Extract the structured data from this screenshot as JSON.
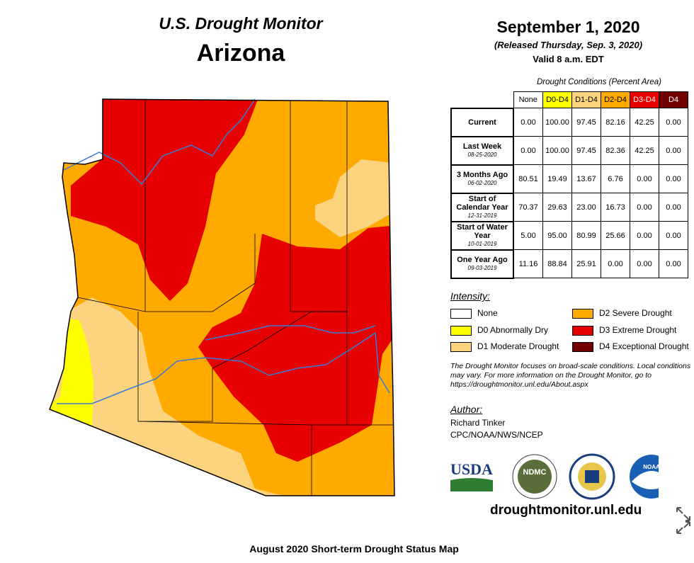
{
  "header": {
    "title": "U.S. Drought Monitor",
    "state": "Arizona",
    "date": "September 1, 2020",
    "released": "(Released Thursday, Sep. 3, 2020)",
    "valid": "Valid 8 a.m. EDT"
  },
  "table": {
    "caption": "Drought Conditions (Percent Area)",
    "columns": [
      "None",
      "D0-D4",
      "D1-D4",
      "D2-D4",
      "D3-D4",
      "D4"
    ],
    "rows": [
      {
        "label": "Current",
        "values": [
          "0.00",
          "100.00",
          "97.45",
          "82.16",
          "42.25",
          "0.00"
        ]
      },
      {
        "label": "Last Week",
        "date": "08-25-2020",
        "values": [
          "0.00",
          "100.00",
          "97.45",
          "82.36",
          "42.25",
          "0.00"
        ]
      },
      {
        "label": "3 Months Ago",
        "date": "06-02-2020",
        "values": [
          "80.51",
          "19.49",
          "13.67",
          "6.76",
          "0.00",
          "0.00"
        ]
      },
      {
        "label": "Start of Calendar Year",
        "date": "12-31-2019",
        "values": [
          "70.37",
          "29.63",
          "23.00",
          "16.73",
          "0.00",
          "0.00"
        ]
      },
      {
        "label": "Start of Water Year",
        "date": "10-01-2019",
        "values": [
          "5.00",
          "95.00",
          "80.99",
          "25.66",
          "0.00",
          "0.00"
        ]
      },
      {
        "label": "One Year Ago",
        "date": "09-03-2019",
        "values": [
          "11.16",
          "88.84",
          "25.91",
          "0.00",
          "0.00",
          "0.00"
        ]
      }
    ]
  },
  "legend": {
    "title": "Intensity:",
    "items": [
      {
        "label": "None",
        "color": "#ffffff"
      },
      {
        "label": "D0 Abnormally Dry",
        "color": "#ffff00"
      },
      {
        "label": "D1 Moderate Drought",
        "color": "#fcd37f"
      },
      {
        "label": "D2 Severe Drought",
        "color": "#ffaa00"
      },
      {
        "label": "D3 Extreme Drought",
        "color": "#e60000"
      },
      {
        "label": "D4 Exceptional Drought",
        "color": "#730000"
      }
    ]
  },
  "note": "The Drought Monitor focuses on broad-scale conditions. Local conditions may vary. For more information on the Drought Monitor, go to https://droughtmonitor.unl.edu/About.aspx",
  "author": {
    "title": "Author:",
    "name": "Richard Tinker",
    "org": "CPC/NOAA/NWS/NCEP"
  },
  "logos": [
    "USDA",
    "NDMC",
    "NOAA"
  ],
  "url": "droughtmonitor.unl.edu",
  "caption": "August 2020 Short-term Drought Status Map"
}
